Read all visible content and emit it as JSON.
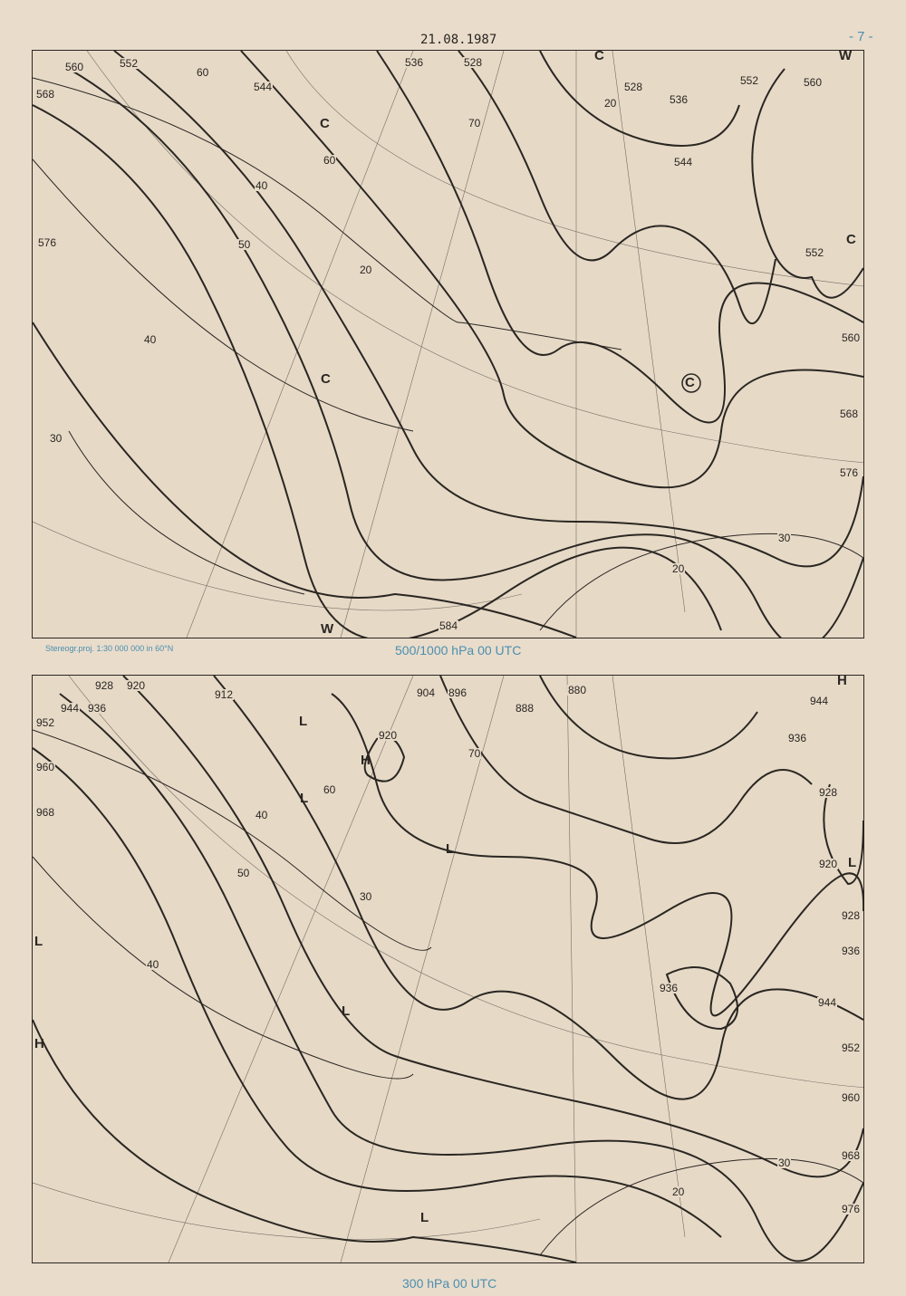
{
  "header": {
    "date": "21.08.1987",
    "page_number": "- 7 -"
  },
  "colors": {
    "paper": "#e9dccb",
    "ink": "#2a2622",
    "caption_blue": "#4a8fb0"
  },
  "map_500": {
    "caption": "500/1000 hPa 00 UTC",
    "projection": "Stereogr.proj. 1:30 000 000 in 60°N",
    "height_labels": [
      "560",
      "552",
      "568",
      "544",
      "536",
      "528",
      "528",
      "536",
      "544",
      "552",
      "560",
      "576",
      "552",
      "560",
      "568",
      "576",
      "584"
    ],
    "thickness_labels": [
      "60",
      "70",
      "60",
      "50",
      "40",
      "20",
      "40",
      "30",
      "20",
      "30",
      "20"
    ],
    "centers": [
      "C",
      "C",
      "C",
      "C",
      "W",
      "W",
      "C"
    ]
  },
  "map_300": {
    "caption": "300 hPa 00 UTC",
    "height_labels": [
      "928",
      "920",
      "912",
      "944",
      "936",
      "952",
      "960",
      "968",
      "920",
      "904",
      "896",
      "888",
      "880",
      "944",
      "936",
      "928",
      "920",
      "928",
      "936",
      "944",
      "952",
      "960",
      "968",
      "976",
      "936"
    ],
    "speed_labels": [
      "60",
      "70",
      "40",
      "50",
      "30",
      "40",
      "30",
      "20"
    ],
    "centers": [
      "L",
      "H",
      "L",
      "L",
      "L",
      "L",
      "H",
      "L",
      "H",
      "L"
    ]
  }
}
